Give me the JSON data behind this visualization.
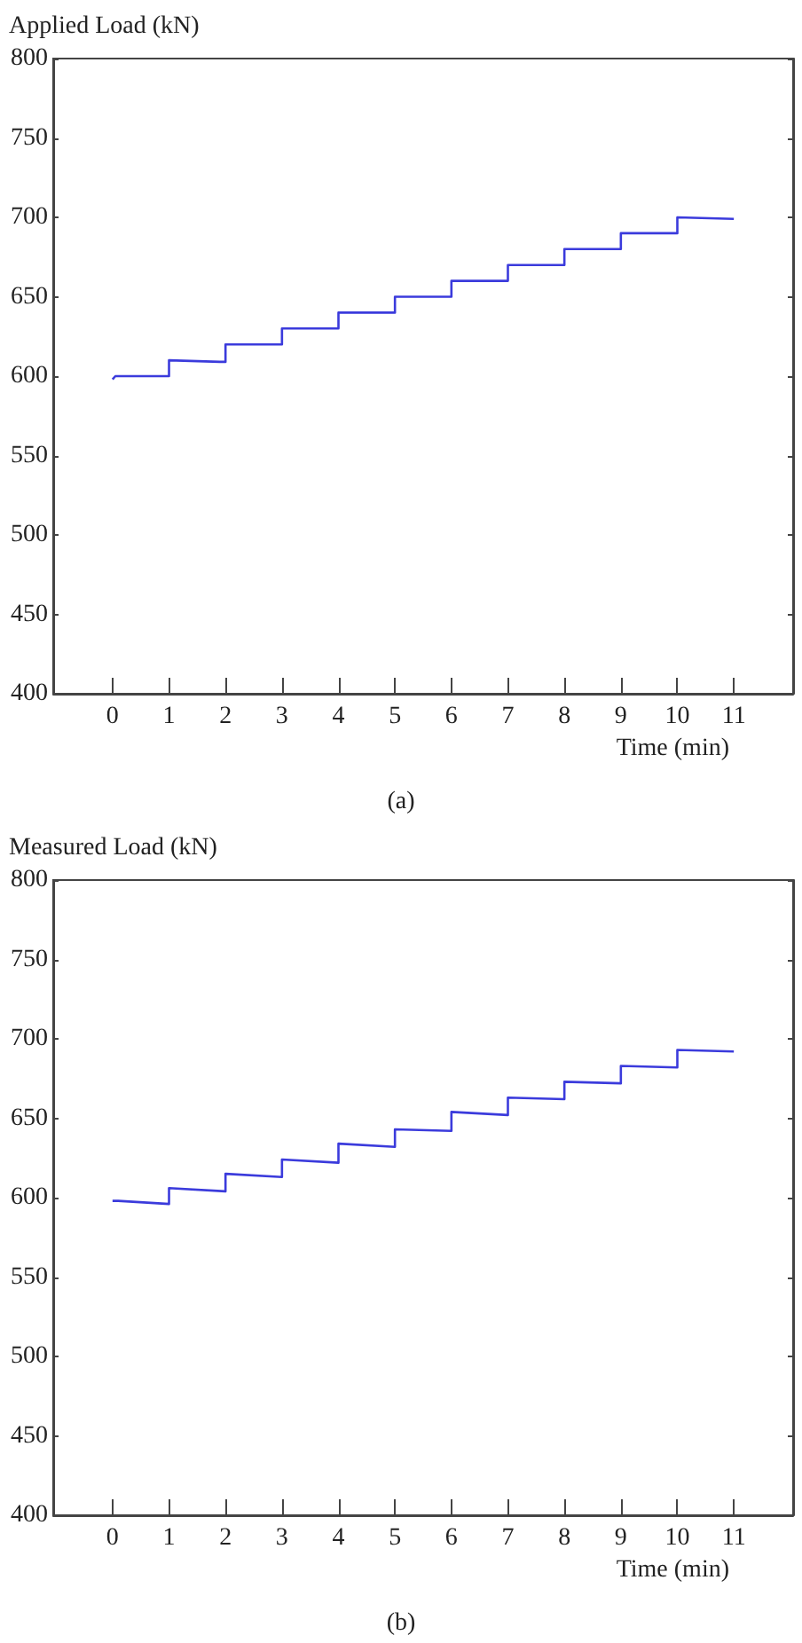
{
  "chart_data": [
    {
      "type": "line",
      "ylabel": "Applied Load (kN)",
      "xlabel": "Time (min)",
      "annotations": [
        "(a)"
      ],
      "marker": "none",
      "xlim": [
        -1.05,
        12.05
      ],
      "ylim": [
        400,
        800
      ],
      "xticks": [
        0,
        1,
        2,
        3,
        4,
        5,
        6,
        7,
        8,
        9,
        10,
        11
      ],
      "yticks": [
        400,
        450,
        500,
        550,
        600,
        650,
        700,
        750,
        800
      ],
      "series": [
        {
          "color": "#3b3bdc",
          "x": [
            0,
            0.05,
            1,
            1,
            1.9,
            2,
            2,
            3,
            3,
            4,
            4,
            5,
            5,
            6,
            6,
            7,
            7,
            8,
            8,
            9,
            9,
            10,
            10,
            11
          ],
          "values": [
            598,
            600,
            600,
            610,
            609,
            609,
            620,
            620,
            630,
            630,
            640,
            640,
            650,
            650,
            660,
            660,
            670,
            670,
            680,
            680,
            690,
            690,
            700,
            699
          ]
        }
      ]
    },
    {
      "type": "line",
      "ylabel": "Measured Load (kN)",
      "xlabel": "Time (min)",
      "annotations": [
        "(b)"
      ],
      "marker": "none",
      "xlim": [
        -1.05,
        12.05
      ],
      "ylim": [
        400,
        800
      ],
      "xticks": [
        0,
        1,
        2,
        3,
        4,
        5,
        6,
        7,
        8,
        9,
        10,
        11
      ],
      "yticks": [
        400,
        450,
        500,
        550,
        600,
        650,
        700,
        750,
        800
      ],
      "series": [
        {
          "color": "#3b3bdc",
          "x": [
            0,
            0.1,
            1,
            1,
            2,
            2,
            3,
            3,
            4,
            4,
            5,
            5,
            6,
            6,
            7,
            7,
            8,
            8,
            9,
            9,
            10,
            10,
            11
          ],
          "values": [
            598,
            598,
            596,
            606,
            604,
            615,
            613,
            624,
            622,
            634,
            632,
            643,
            642,
            654,
            652,
            663,
            662,
            673,
            672,
            683,
            682,
            693,
            692
          ]
        }
      ]
    }
  ]
}
